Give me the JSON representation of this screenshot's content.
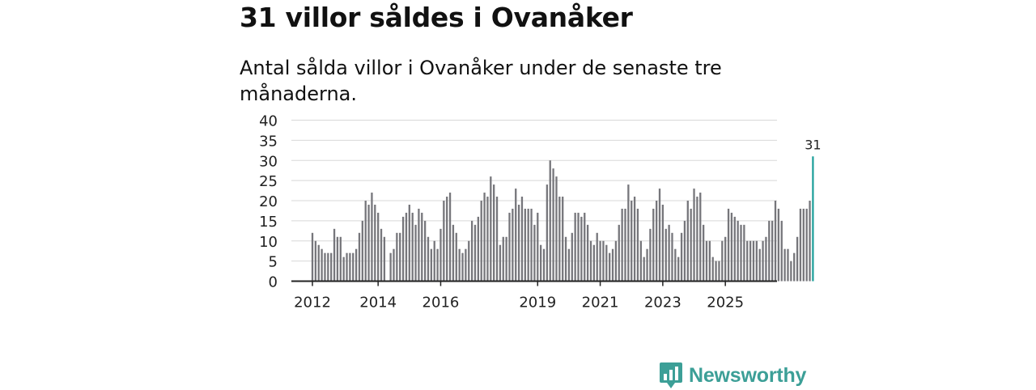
{
  "header": {
    "title": "31 villor såldes i Ovanåker",
    "subtitle": "Antal sålda villor i Ovanåker under de senaste tre månaderna."
  },
  "colors": {
    "bar": "#76767b",
    "highlight": "#1a9e98",
    "grid": "#d8d8d8",
    "axis": "#222222",
    "brand": "#3c9f97"
  },
  "chart_data": {
    "type": "bar",
    "title": "31 villor såldes i Ovanåker",
    "subtitle": "Antal sålda villor i Ovanåker under de senaste tre månaderna.",
    "xlabel": "",
    "ylabel": "",
    "ylim": [
      0,
      40
    ],
    "yticks": [
      "0",
      "5",
      "10",
      "15",
      "20",
      "25",
      "30",
      "35",
      "40"
    ],
    "xticks": [
      {
        "label": "2012",
        "index": 0
      },
      {
        "label": "2014",
        "index": 21
      },
      {
        "label": "2016",
        "index": 41
      },
      {
        "label": "2019",
        "index": 72
      },
      {
        "label": "2021",
        "index": 92
      },
      {
        "label": "2023",
        "index": 112
      },
      {
        "label": "2025",
        "index": 132
      }
    ],
    "grid": true,
    "highlight_label": "31",
    "values": [
      12,
      10,
      9,
      8,
      7,
      7,
      7,
      13,
      11,
      11,
      6,
      7,
      7,
      7,
      8,
      12,
      15,
      20,
      19,
      22,
      19,
      17,
      13,
      11,
      0,
      7,
      8,
      12,
      12,
      16,
      17,
      19,
      17,
      14,
      18,
      17,
      15,
      11,
      8,
      10,
      8,
      13,
      20,
      21,
      22,
      14,
      12,
      8,
      7,
      8,
      10,
      15,
      14,
      16,
      20,
      22,
      21,
      26,
      24,
      21,
      9,
      11,
      11,
      17,
      18,
      23,
      19,
      21,
      18,
      18,
      18,
      14,
      17,
      9,
      8,
      24,
      30,
      28,
      26,
      21,
      21,
      11,
      8,
      12,
      17,
      17,
      16,
      17,
      14,
      10,
      9,
      12,
      10,
      10,
      9,
      7,
      8,
      10,
      14,
      18,
      18,
      24,
      20,
      21,
      18,
      10,
      6,
      8,
      13,
      18,
      20,
      23,
      19,
      13,
      14,
      12,
      8,
      6,
      12,
      15,
      20,
      18,
      23,
      21,
      22,
      14,
      10,
      10,
      6,
      5,
      5,
      10,
      11,
      18,
      17,
      16,
      15,
      14,
      14,
      10,
      10,
      10,
      10,
      8,
      10,
      11,
      15,
      15,
      20,
      18,
      15,
      8,
      8,
      5,
      7,
      11,
      18,
      18,
      18,
      20,
      31
    ]
  },
  "logo": {
    "name": "Newsworthy"
  }
}
